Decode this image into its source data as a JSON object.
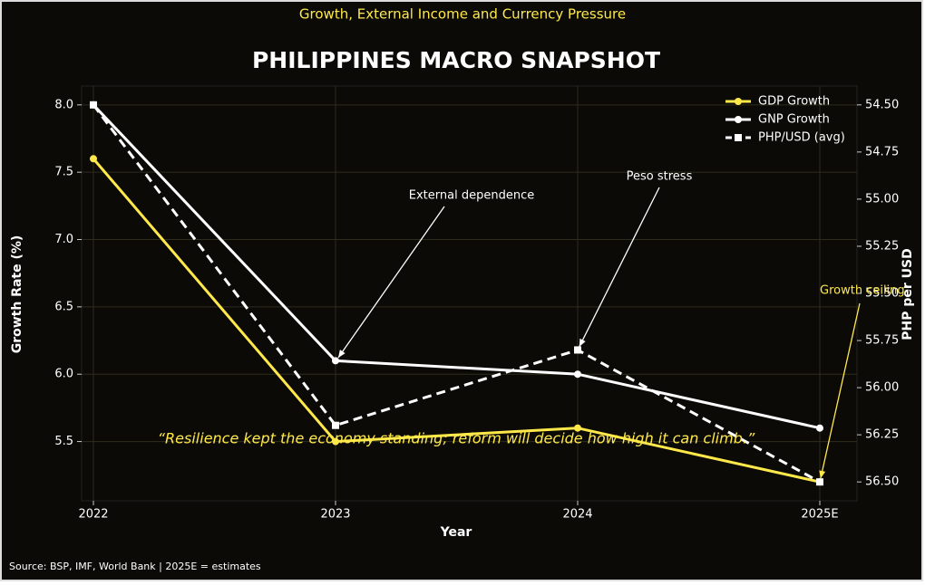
{
  "chart_data": {
    "type": "line",
    "subtitle": "Growth, External Income and Currency Pressure",
    "title": "PHILIPPINES MACRO SNAPSHOT",
    "x_label": "Year",
    "y_label": "Growth Rate (%)",
    "y2_label": "PHP per USD",
    "source": "Source: BSP, IMF, World Bank | 2025E = estimates",
    "categories": [
      "2022",
      "2023",
      "2024",
      "2025E"
    ],
    "series": [
      {
        "name": "GDP Growth",
        "color": "#ffe94a",
        "style": "solid",
        "marker": "circle",
        "values": [
          7.6,
          5.5,
          5.6,
          5.2
        ]
      },
      {
        "name": "GNP Growth",
        "color": "#ffffff",
        "style": "solid",
        "marker": "circle",
        "values": [
          8.0,
          6.1,
          6.0,
          5.6
        ]
      },
      {
        "name": "PHP/USD (avg)",
        "color": "#ffffff",
        "style": "dashed",
        "marker": "square",
        "axis": "y2",
        "values": [
          54.5,
          56.2,
          55.8,
          56.5
        ]
      }
    ],
    "ylim": [
      5.06,
      8.14
    ],
    "yticks": [
      5.5,
      {
        "value": 6,
        "label": "6.0"
      },
      6.5,
      {
        "value": 7,
        "label": "7.0"
      },
      7.5,
      {
        "value": 8,
        "label": "8.0"
      }
    ],
    "y2lim": [
      54.4,
      56.6
    ],
    "y2_inverted": true,
    "y2ticks": [
      {
        "value": 54.5,
        "label": "54.50"
      },
      54.75,
      {
        "value": 55,
        "label": "55.00"
      },
      55.25,
      {
        "value": 55.5,
        "label": "55.50"
      },
      55.75,
      {
        "value": 56,
        "label": "56.00"
      },
      56.25,
      {
        "value": 56.5,
        "label": "56.50"
      }
    ],
    "grid": true,
    "legend": "upper right",
    "annotations": [
      {
        "text": "External dependence"
      },
      {
        "text": "Peso stress"
      },
      {
        "text": "Growth ceiling",
        "color": "#ffe94a"
      }
    ],
    "quote": "“Resilience kept the economy standing; reform will decide how high it can climb.”",
    "quote_color": "#ffe94a"
  }
}
